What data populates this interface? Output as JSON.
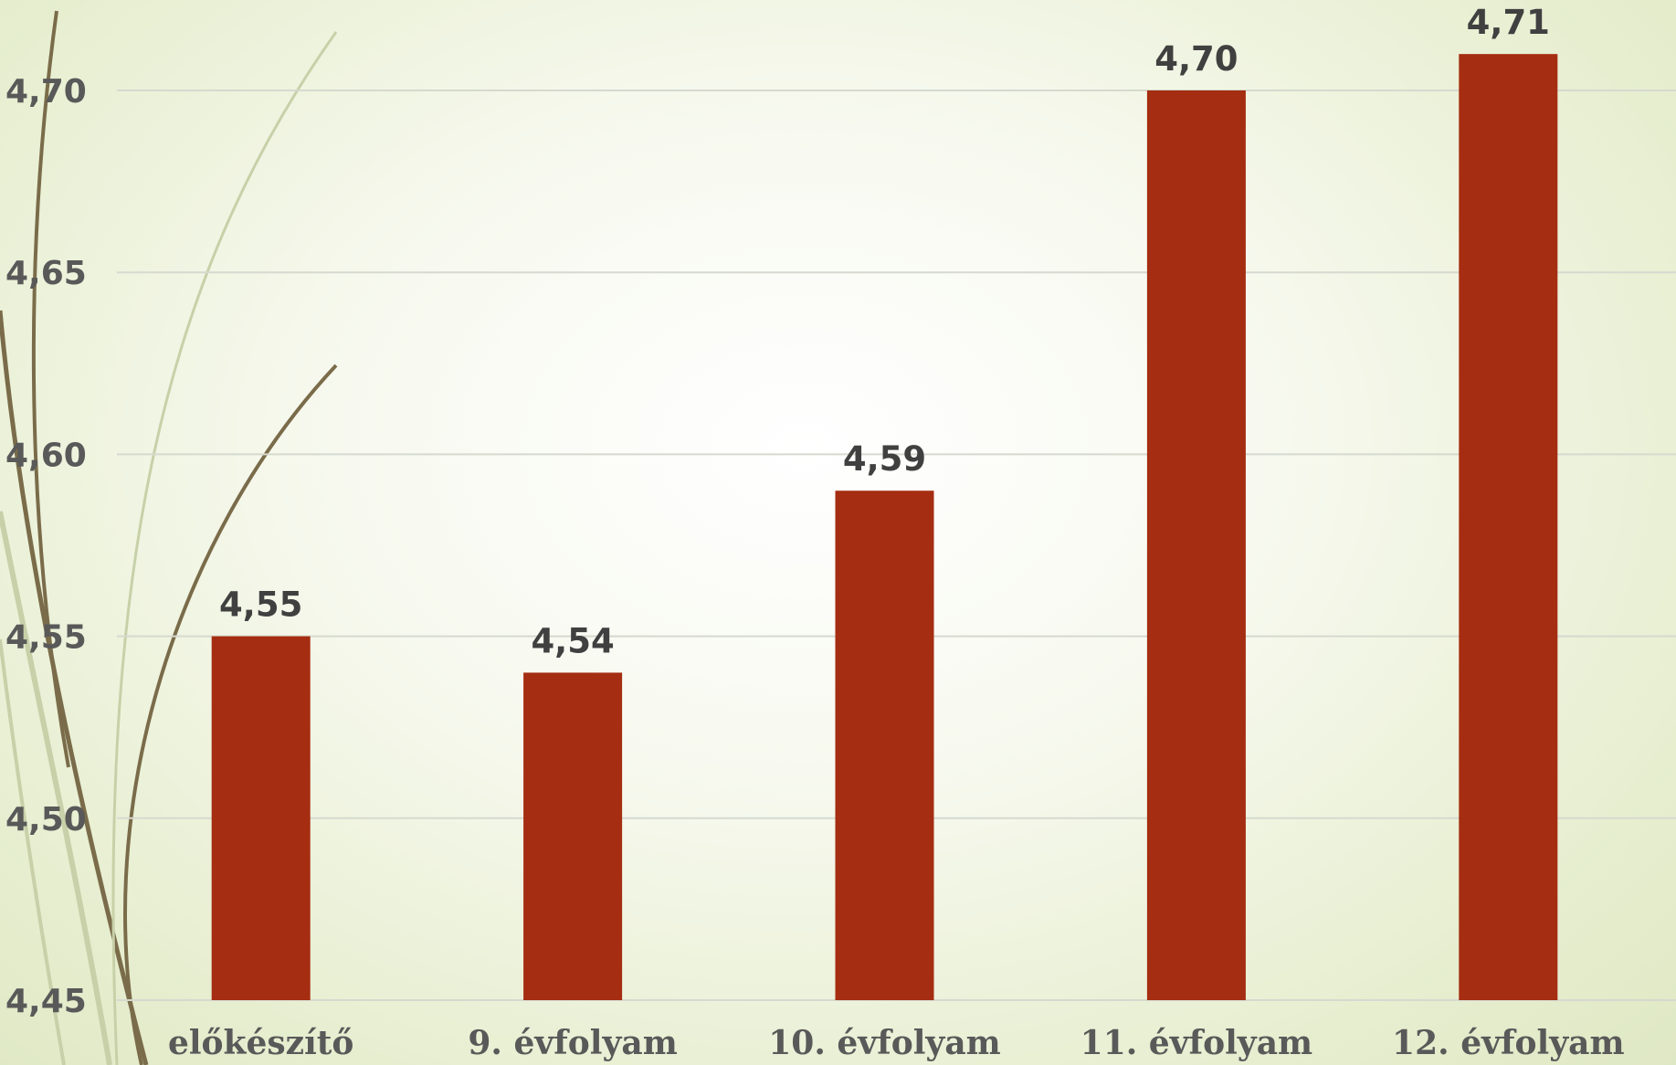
{
  "chart_data": {
    "type": "bar",
    "categories": [
      "előkészítő",
      "9. évfolyam",
      "10. évfolyam",
      "11. évfolyam",
      "12. évfolyam"
    ],
    "values": [
      4.55,
      4.54,
      4.59,
      4.7,
      4.71
    ],
    "value_labels": [
      "4,55",
      "4,54",
      "4,59",
      "4,70",
      "4,71"
    ],
    "y_ticks": [
      "4,45",
      "4,50",
      "4,55",
      "4,60",
      "4,65",
      "4,70"
    ],
    "y_tick_values": [
      4.45,
      4.5,
      4.55,
      4.6,
      4.65,
      4.7
    ],
    "ylim": [
      4.45,
      4.72
    ],
    "grid": true,
    "legend": "none",
    "title": "",
    "xlabel": "",
    "ylabel": "",
    "colors": {
      "bar": "#a52d11",
      "decoration_dark": "#7a6c4a",
      "decoration_light": "#c7d0a8"
    }
  }
}
